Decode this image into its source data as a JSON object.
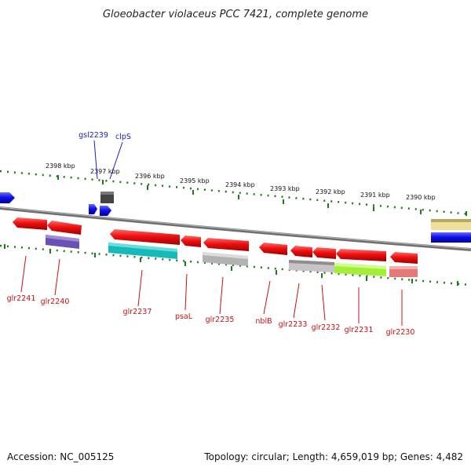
{
  "title": "Gloeobacter violaceus PCC 7421, complete genome",
  "footer": {
    "accession": "Accession: NC_005125",
    "topology": "Topology: circular; Length: 4,659,019 bp; Genes: 4,482"
  },
  "ruler_labels": [
    "2398 kbp",
    "2397 kbp",
    "2396 kbp",
    "2395 kbp",
    "2394 kbp",
    "2393 kbp",
    "2392 kbp",
    "2391 kbp",
    "2390 kbp"
  ],
  "gene_labels": [
    {
      "text": "gsl2239",
      "color": "#1a1acc"
    },
    {
      "text": "clpS",
      "color": "#1a1acc"
    },
    {
      "text": "glr2241",
      "color": "#cc1010"
    },
    {
      "text": "glr2240",
      "color": "#cc1010"
    },
    {
      "text": "glr2237",
      "color": "#cc1010"
    },
    {
      "text": "psaL",
      "color": "#cc1010"
    },
    {
      "text": "glr2235",
      "color": "#cc1010"
    },
    {
      "text": "nblB",
      "color": "#cc1010"
    },
    {
      "text": "glr2233",
      "color": "#cc1010"
    },
    {
      "text": "glr2232",
      "color": "#cc1010"
    },
    {
      "text": "glr2231",
      "color": "#cc1010"
    },
    {
      "text": "glr2230",
      "color": "#cc1010"
    }
  ],
  "colors": {
    "forward_gene": "#1010ee",
    "reverse_gene": "#ee1010",
    "genome_line": "#7a7a7a",
    "ruler": "#1c7a1c"
  }
}
